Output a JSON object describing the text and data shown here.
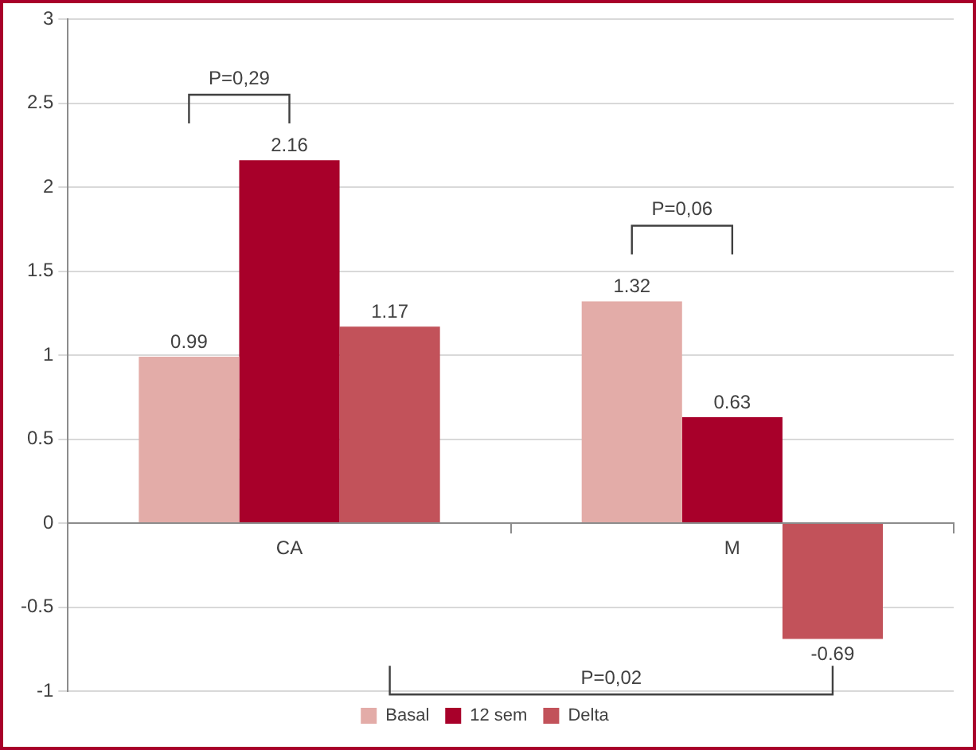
{
  "chart_data": {
    "type": "bar",
    "categories": [
      "CA",
      "M"
    ],
    "series": [
      {
        "name": "Basal",
        "color": "#e3aca8",
        "values": [
          0.99,
          1.32
        ]
      },
      {
        "name": "12 sem",
        "color": "#a8002a",
        "values": [
          2.16,
          0.63
        ]
      },
      {
        "name": "Delta",
        "color": "#c2525a",
        "values": [
          1.17,
          -0.69
        ]
      }
    ],
    "ylim": [
      -1,
      3
    ],
    "yticks": [
      -1,
      -0.5,
      0,
      0.5,
      1,
      1.5,
      2,
      2.5,
      3
    ],
    "grid": "y",
    "legend": "bottom",
    "data_labels": true,
    "annotations": [
      "P=0,29",
      "P=0,06",
      "P=0,02"
    ]
  }
}
